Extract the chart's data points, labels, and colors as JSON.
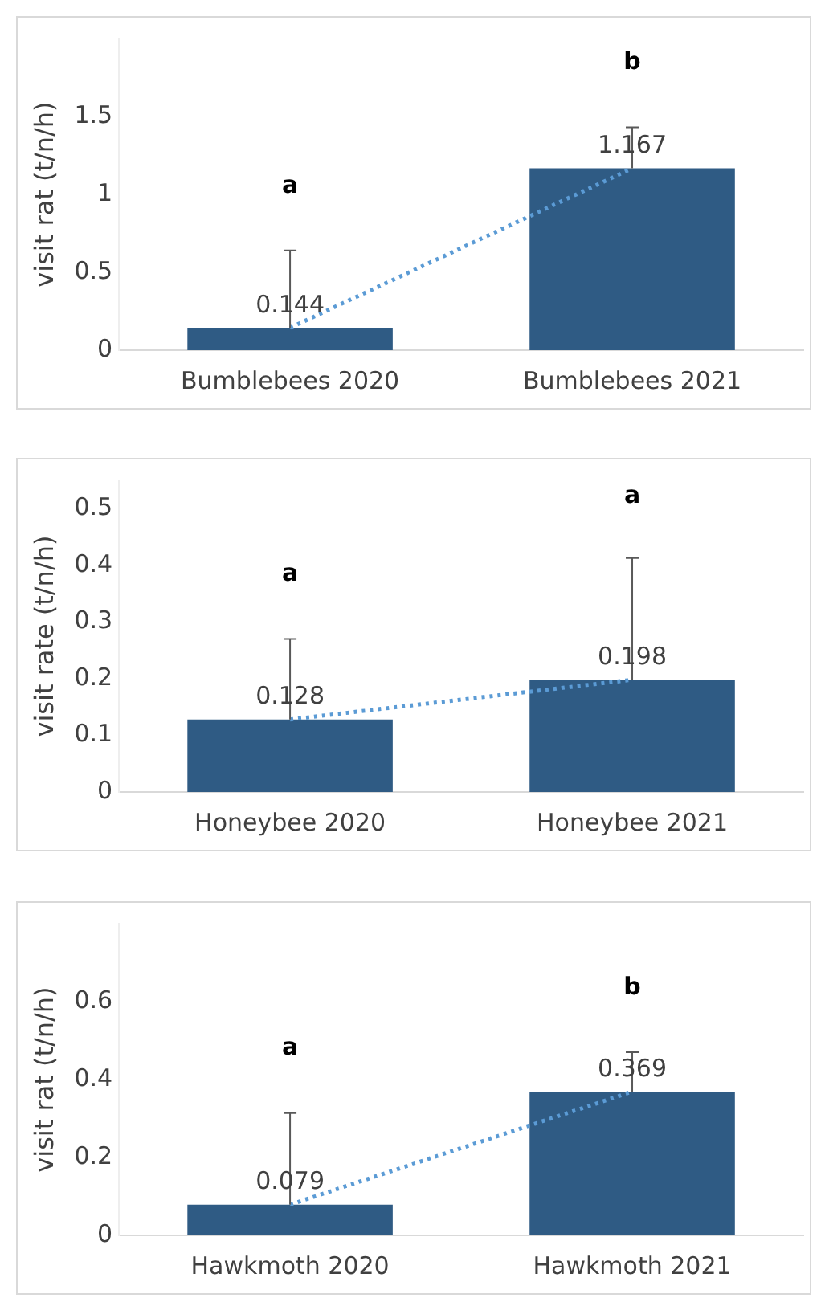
{
  "chart_data": [
    {
      "type": "bar",
      "ylabel": "visit rat (t/n/h)",
      "categories": [
        "Bumblebees 2020",
        "Bumblebees 2021"
      ],
      "ylim": [
        0,
        2
      ],
      "yticks": [
        0,
        0.5,
        1,
        1.5
      ],
      "series": [
        {
          "color": "#2f5b84",
          "values": [
            0.144,
            1.167
          ],
          "value_labels": [
            "0.144",
            "1.167"
          ],
          "errors": [
            [
              0.144,
              0.64
            ],
            [
              1.167,
              1.43
            ]
          ]
        },
        {
          "type": "line",
          "color": "#5b9bd5",
          "values": [
            0.144,
            1.167
          ],
          "line_style": "dotted",
          "marker": "none"
        }
      ],
      "annotations": [
        "a",
        "b"
      ]
    },
    {
      "type": "bar",
      "ylabel": "visit rate (t/n/h)",
      "categories": [
        "Honeybee 2020",
        "Honeybee 2021"
      ],
      "ylim": [
        0,
        0.55
      ],
      "yticks": [
        0,
        0.1,
        0.2,
        0.3,
        0.4,
        0.5
      ],
      "series": [
        {
          "color": "#2f5b84",
          "values": [
            0.128,
            0.198
          ],
          "value_labels": [
            "0.128",
            "0.198"
          ],
          "errors": [
            [
              0.128,
              0.27
            ],
            [
              0.198,
              0.413
            ]
          ]
        },
        {
          "type": "line",
          "color": "#5b9bd5",
          "values": [
            0.128,
            0.198
          ],
          "line_style": "dotted",
          "marker": "none"
        }
      ],
      "annotations": [
        "a",
        "a"
      ]
    },
    {
      "type": "bar",
      "ylabel": "visit rat (t/n/h)",
      "categories": [
        "Hawkmoth 2020",
        "Hawkmoth 2021"
      ],
      "ylim": [
        0,
        0.8
      ],
      "yticks": [
        0,
        0.2,
        0.4,
        0.6
      ],
      "series": [
        {
          "color": "#2f5b84",
          "values": [
            0.079,
            0.369
          ],
          "value_labels": [
            "0.079",
            "0.369"
          ],
          "errors": [
            [
              0.079,
              0.314
            ],
            [
              0.369,
              0.47
            ]
          ]
        },
        {
          "type": "line",
          "color": "#5b9bd5",
          "values": [
            0.079,
            0.369
          ],
          "line_style": "dotted",
          "marker": "none"
        }
      ],
      "annotations": [
        "a",
        "b"
      ]
    }
  ]
}
